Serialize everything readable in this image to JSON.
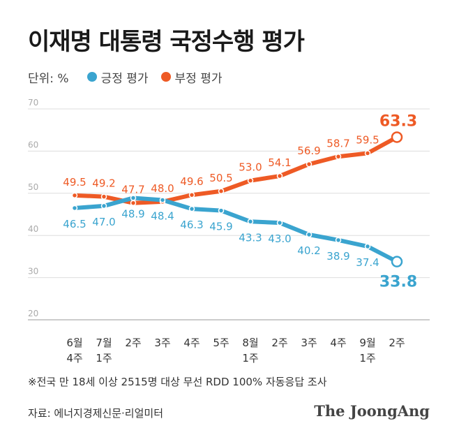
{
  "title": "이재명 대통령 국정수행 평가",
  "legend": {
    "unit": "단위: %",
    "positive": "긍정 평가",
    "negative": "부정 평가"
  },
  "colors": {
    "positive": "#3aa4cf",
    "negative": "#ee5a25",
    "grid": "#dddddd",
    "axis_label": "#aaaaaa"
  },
  "footnote": "※전국 만 18세 이상 2515명 대상 무선 RDD 100% 자동응답 조사",
  "source": "자료: 에너지경제신문·리얼미터",
  "logo": "The JoongAng",
  "chart_data": {
    "type": "line",
    "categories": [
      [
        "6월",
        "4주"
      ],
      [
        "7월",
        "1주"
      ],
      [
        "2주"
      ],
      [
        "3주"
      ],
      [
        "4주"
      ],
      [
        "5주"
      ],
      [
        "8월",
        "1주"
      ],
      [
        "2주"
      ],
      [
        "3주"
      ],
      [
        "4주"
      ],
      [
        "9월",
        "1주"
      ],
      [
        "2주"
      ]
    ],
    "ylim": [
      20,
      70
    ],
    "yticks": [
      20,
      30,
      40,
      50,
      60,
      70
    ],
    "grid": true,
    "series": [
      {
        "name": "부정 평가",
        "key": "negative",
        "values": [
          49.5,
          49.2,
          47.7,
          48.0,
          49.6,
          50.5,
          53.0,
          54.1,
          56.9,
          58.7,
          59.5,
          63.3
        ],
        "labels": [
          "49.5",
          "49.2",
          "47.7",
          "48.0",
          "49.6",
          "50.5",
          "53.0",
          "54.1",
          "56.9",
          "58.7",
          "59.5",
          "63.3"
        ]
      },
      {
        "name": "긍정 평가",
        "key": "positive",
        "values": [
          46.5,
          47.0,
          48.9,
          48.4,
          46.3,
          45.9,
          43.3,
          43.0,
          40.2,
          38.9,
          37.4,
          33.8
        ],
        "labels": [
          "46.5",
          "47.0",
          "48.9",
          "48.4",
          "46.3",
          "45.9",
          "43.3",
          "43.0",
          "40.2",
          "38.9",
          "37.4",
          "33.8"
        ]
      }
    ]
  }
}
